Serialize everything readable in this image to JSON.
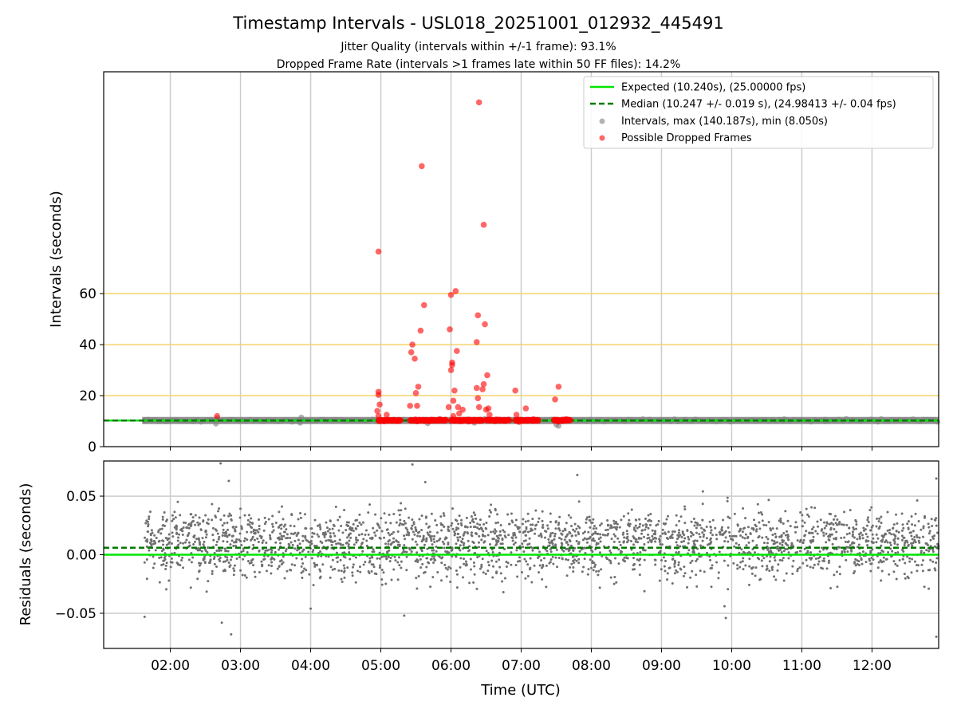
{
  "title": "Timestamp Intervals - USL018_20251001_012932_445491",
  "subtitle_1": "Jitter Quality (intervals within +/-1 frame): 93.1%",
  "subtitle_2": "Dropped Frame Rate (intervals >1 frames late within 50 FF files): 14.2%",
  "chart_data": [
    {
      "type": "scatter",
      "panel": "intervals",
      "ylabel": "Intervals (seconds)",
      "xlim": [
        "01:03",
        "12:57"
      ],
      "ylim": [
        0,
        147
      ],
      "grid": "vertical",
      "yticks": [
        {
          "label": "0",
          "value": 0
        },
        {
          "label": "20",
          "value": 20
        },
        {
          "label": "40",
          "value": 40
        },
        {
          "label": "60",
          "value": 60
        }
      ],
      "reference_lines": [
        {
          "value": 20,
          "color": "#f5d36b"
        },
        {
          "value": 40,
          "color": "#f5d36b"
        },
        {
          "value": 60,
          "color": "#f5d36b"
        }
      ],
      "legend_position": "upper right",
      "colors": {
        "expected": "#00e600",
        "median": "#007a00",
        "intervals": "#808080",
        "dropped": "#ff0000",
        "threshold": "#f5d36b",
        "grid": "#cccccc"
      },
      "expected": {
        "name": "Expected (10.240s), (25.00000 fps)",
        "value": 10.24
      },
      "median": {
        "name": "Median (10.247 +/- 0.019 s), (24.98413 +/- 0.04 fps)",
        "value": 10.247
      },
      "intervals": {
        "name": "Intervals, max (140.187s), min (8.050s)",
        "x_range": [
          "01:38",
          "12:57"
        ],
        "baseline": 10.25,
        "points": [
          {
            "x": "01:38",
            "y": 10.1
          },
          {
            "x": "02:39",
            "y": 9.0
          },
          {
            "x": "02:40",
            "y": 11.2
          },
          {
            "x": "03:51",
            "y": 9.3
          },
          {
            "x": "03:52",
            "y": 11.5
          },
          {
            "x": "05:40",
            "y": 9.1
          },
          {
            "x": "06:20",
            "y": 9.3
          },
          {
            "x": "07:30",
            "y": 8.6
          },
          {
            "x": "07:32",
            "y": 8.1
          },
          {
            "x": "10:45",
            "y": 10.8
          },
          {
            "x": "11:20",
            "y": 10.6
          }
        ]
      },
      "dropped_frames": {
        "name": "Possible Dropped Frames",
        "clusters": [
          {
            "from": "04:58",
            "to": "05:17"
          },
          {
            "from": "05:25",
            "to": "05:56"
          },
          {
            "from": "06:00",
            "to": "06:27"
          },
          {
            "from": "06:30",
            "to": "06:50"
          },
          {
            "from": "06:55",
            "to": "07:15"
          },
          {
            "from": "07:28",
            "to": "07:42"
          }
        ],
        "cluster_value": 10.3,
        "points": [
          {
            "x": "02:40",
            "y": 12.0
          },
          {
            "x": "04:58",
            "y": 76.5
          },
          {
            "x": "04:58",
            "y": 21.5
          },
          {
            "x": "04:58",
            "y": 20.3
          },
          {
            "x": "04:57",
            "y": 14.0
          },
          {
            "x": "04:59",
            "y": 16.5
          },
          {
            "x": "04:58",
            "y": 12.0
          },
          {
            "x": "05:05",
            "y": 12.5
          },
          {
            "x": "05:25",
            "y": 16.0
          },
          {
            "x": "05:26",
            "y": 37.0
          },
          {
            "x": "05:27",
            "y": 40.0
          },
          {
            "x": "05:29",
            "y": 34.5
          },
          {
            "x": "05:30",
            "y": 21.0
          },
          {
            "x": "05:31",
            "y": 16.0
          },
          {
            "x": "05:32",
            "y": 23.5
          },
          {
            "x": "05:34",
            "y": 45.5
          },
          {
            "x": "05:35",
            "y": 110.0
          },
          {
            "x": "05:37",
            "y": 55.5
          },
          {
            "x": "05:58",
            "y": 15.5
          },
          {
            "x": "05:59",
            "y": 46.0
          },
          {
            "x": "06:00",
            "y": 59.5
          },
          {
            "x": "06:00",
            "y": 30.0
          },
          {
            "x": "06:01",
            "y": 33.0
          },
          {
            "x": "06:01",
            "y": 32.0
          },
          {
            "x": "06:02",
            "y": 18.0
          },
          {
            "x": "06:02",
            "y": 12.0
          },
          {
            "x": "06:03",
            "y": 22.0
          },
          {
            "x": "06:04",
            "y": 61.0
          },
          {
            "x": "06:05",
            "y": 37.5
          },
          {
            "x": "06:06",
            "y": 15.5
          },
          {
            "x": "06:07",
            "y": 13.0
          },
          {
            "x": "06:10",
            "y": 14.5
          },
          {
            "x": "06:22",
            "y": 23.0
          },
          {
            "x": "06:22",
            "y": 41.0
          },
          {
            "x": "06:23",
            "y": 51.5
          },
          {
            "x": "06:23",
            "y": 19.0
          },
          {
            "x": "06:24",
            "y": 15.5
          },
          {
            "x": "06:24",
            "y": 135.0
          },
          {
            "x": "06:27",
            "y": 22.5
          },
          {
            "x": "06:28",
            "y": 87.0
          },
          {
            "x": "06:28",
            "y": 24.5
          },
          {
            "x": "06:29",
            "y": 48.0
          },
          {
            "x": "06:30",
            "y": 14.5
          },
          {
            "x": "06:31",
            "y": 28.0
          },
          {
            "x": "06:32",
            "y": 15.0
          },
          {
            "x": "06:33",
            "y": 12.5
          },
          {
            "x": "06:55",
            "y": 22.0
          },
          {
            "x": "06:56",
            "y": 12.5
          },
          {
            "x": "07:04",
            "y": 15.0
          },
          {
            "x": "07:29",
            "y": 18.5
          },
          {
            "x": "07:32",
            "y": 23.5
          }
        ]
      }
    },
    {
      "type": "scatter",
      "panel": "residuals",
      "xlabel": "Time (UTC)",
      "ylabel": "Residuals (seconds)",
      "xlim": [
        "01:03",
        "12:57"
      ],
      "ylim": [
        -0.08,
        0.08
      ],
      "grid": "both",
      "xticks": [
        "02:00",
        "03:00",
        "04:00",
        "05:00",
        "06:00",
        "07:00",
        "08:00",
        "09:00",
        "10:00",
        "11:00",
        "12:00"
      ],
      "yticks": [
        {
          "label": "−0.05",
          "value": -0.05
        },
        {
          "label": "0.00",
          "value": 0.0
        },
        {
          "label": "0.05",
          "value": 0.05
        }
      ],
      "expected_residual": 0.0,
      "median_residual": 0.006,
      "residuals": {
        "x_range": [
          "01:38",
          "12:57"
        ],
        "count": 2600,
        "value_range": [
          -0.07,
          0.078
        ],
        "typical_range": [
          -0.015,
          0.03
        ],
        "outliers": [
          {
            "x": "01:38",
            "y": -0.053
          },
          {
            "x": "02:43",
            "y": 0.078
          },
          {
            "x": "02:44",
            "y": -0.058
          },
          {
            "x": "02:50",
            "y": 0.063
          },
          {
            "x": "02:52",
            "y": -0.068
          },
          {
            "x": "04:00",
            "y": -0.046
          },
          {
            "x": "05:20",
            "y": -0.052
          },
          {
            "x": "05:27",
            "y": 0.077
          },
          {
            "x": "05:38",
            "y": 0.062
          },
          {
            "x": "07:48",
            "y": 0.068
          },
          {
            "x": "09:55",
            "y": -0.054
          },
          {
            "x": "12:55",
            "y": -0.07
          },
          {
            "x": "12:55",
            "y": 0.065
          }
        ]
      }
    }
  ]
}
